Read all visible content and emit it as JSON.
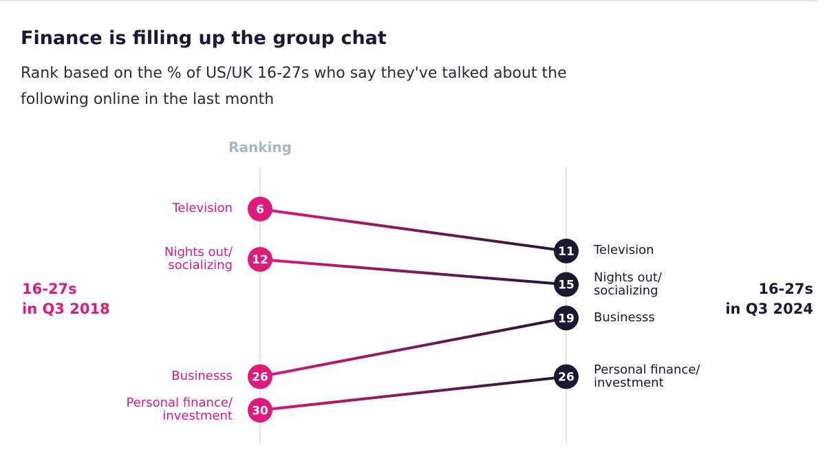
{
  "chart_data": {
    "type": "slope",
    "title": "Finance is filling up the group chat",
    "subtitle": "Rank based on the % of US/UK 16-27s who say they've talked about the following online in the last month",
    "axis_label": "Ranking",
    "categories": [
      "Television",
      "Nights out/\nsocializing",
      "Businesss",
      "Personal finance/\ninvestment"
    ],
    "series": [
      {
        "name": "16-27s\nin Q3 2018",
        "color": "#e0197d",
        "values": [
          6,
          12,
          26,
          30
        ]
      },
      {
        "name": "16-27s\nin Q3 2024",
        "color": "#1e1633",
        "values": [
          11,
          15,
          19,
          26
        ]
      }
    ],
    "ylim": [
      34,
      1
    ]
  }
}
